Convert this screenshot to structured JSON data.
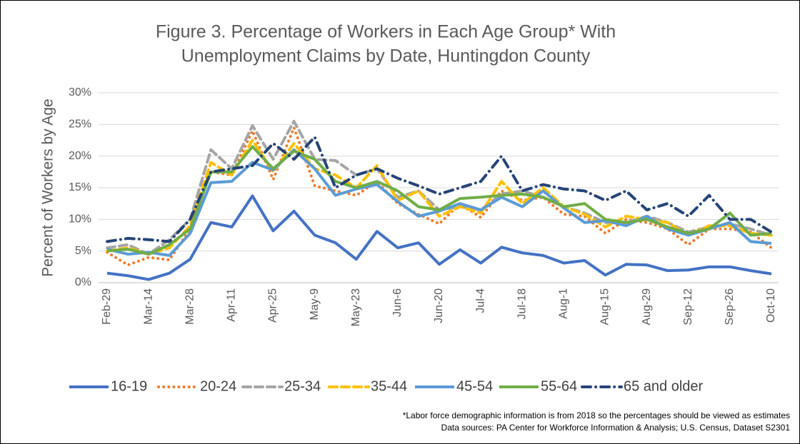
{
  "chart_data": {
    "type": "line",
    "title": [
      "Figure 3. Percentage of Workers in Each Age Group* With",
      "Unemployment Claims by Date, Huntingdon County"
    ],
    "y_label": "Percent of Workers by Age",
    "notes": [
      "*Labor force demographic information is from 2018 so the percentages should be viewed as estimates",
      "Data sources: PA  Center for Workforce Information & Analysis; U.S. Census, Dataset S2301"
    ],
    "categories": [
      "Feb-29",
      null,
      "Mar-14",
      null,
      "Mar-28",
      null,
      "Apr-11",
      null,
      "Apr-25",
      null,
      "May-9",
      null,
      "May-23",
      null,
      "Jun-6",
      null,
      "Jun-20",
      null,
      "Jul-4",
      null,
      "Jul-18",
      null,
      "Aug-1",
      null,
      "Aug-15",
      null,
      "Aug-29",
      null,
      "Sep-12",
      null,
      "Sep-26",
      null,
      "Oct-10"
    ],
    "ylim": [
      0,
      30
    ],
    "yticks": [
      {
        "value": 0,
        "label": "0%"
      },
      {
        "value": 5,
        "label": "5%"
      },
      {
        "value": 10,
        "label": "10%"
      },
      {
        "value": 15,
        "label": "15%"
      },
      {
        "value": 20,
        "label": "20%"
      },
      {
        "value": 25,
        "label": "25%"
      },
      {
        "value": 30,
        "label": "30%"
      }
    ],
    "grid": true,
    "legend": "bottom",
    "series": [
      {
        "name": "16-19",
        "color": "#4472c4",
        "style": "solid",
        "values": [
          1.5,
          1.1,
          0.5,
          1.5,
          3.7,
          9.5,
          8.8,
          13.7,
          8.2,
          11.3,
          7.5,
          6.3,
          3.7,
          8.1,
          5.5,
          6.3,
          2.9,
          5.2,
          3.1,
          5.6,
          4.7,
          4.3,
          3.1,
          3.5,
          1.2,
          2.9,
          2.8,
          1.9,
          2.0,
          2.5,
          2.5,
          1.9,
          1.4
        ]
      },
      {
        "name": "20-24",
        "color": "#ed7d31",
        "style": "dotted",
        "values": [
          4.8,
          2.8,
          4.0,
          3.6,
          8.5,
          17.5,
          17.0,
          24.0,
          16.3,
          24.5,
          15.3,
          14.5,
          13.8,
          16.0,
          12.5,
          10.8,
          9.3,
          12.5,
          10.3,
          14.5,
          13.0,
          13.5,
          10.8,
          10.5,
          7.8,
          10.0,
          9.5,
          8.5,
          6.0,
          8.5,
          8.5,
          8.0,
          5.5
        ]
      },
      {
        "name": "25-34",
        "color": "#a5a5a5",
        "style": "dashed",
        "values": [
          5.5,
          6.0,
          4.5,
          6.8,
          10.0,
          21.0,
          18.0,
          24.8,
          19.5,
          25.5,
          19.5,
          19.3,
          17.0,
          18.0,
          13.5,
          14.5,
          11.5,
          12.0,
          11.5,
          14.0,
          14.5,
          13.5,
          12.0,
          11.0,
          9.5,
          9.5,
          10.5,
          9.5,
          8.0,
          8.8,
          9.3,
          8.5,
          7.5
        ]
      },
      {
        "name": "35-44",
        "color": "#ffc000",
        "style": "dashed",
        "values": [
          5.0,
          5.5,
          4.5,
          5.5,
          9.0,
          19.0,
          17.0,
          22.5,
          17.5,
          22.0,
          18.0,
          17.0,
          15.0,
          18.5,
          13.0,
          14.5,
          10.5,
          12.0,
          11.0,
          16.0,
          12.5,
          15.0,
          12.0,
          10.8,
          8.8,
          10.5,
          10.0,
          9.5,
          7.5,
          9.0,
          9.0,
          7.8,
          7.5
        ]
      },
      {
        "name": "45-54",
        "color": "#5b9bd5",
        "style": "solid",
        "values": [
          5.3,
          4.5,
          4.8,
          4.3,
          7.8,
          15.8,
          16.0,
          19.0,
          17.8,
          21.0,
          18.0,
          13.8,
          14.8,
          15.5,
          12.8,
          10.5,
          11.3,
          12.5,
          11.5,
          13.5,
          12.0,
          14.5,
          11.8,
          9.5,
          9.8,
          9.0,
          10.5,
          8.5,
          7.5,
          8.5,
          9.5,
          6.5,
          6.2
        ]
      },
      {
        "name": "55-64",
        "color": "#70ad47",
        "style": "solid",
        "values": [
          5.0,
          5.3,
          4.5,
          6.0,
          8.5,
          17.5,
          17.5,
          21.5,
          18.0,
          20.8,
          19.5,
          16.0,
          15.0,
          16.0,
          14.5,
          12.0,
          11.5,
          13.3,
          13.5,
          13.8,
          14.0,
          13.5,
          12.0,
          12.5,
          10.0,
          9.5,
          10.0,
          8.8,
          7.8,
          8.5,
          11.0,
          7.5,
          7.8
        ]
      },
      {
        "name": "65 and older",
        "color": "#264478",
        "style": "dashdot",
        "values": [
          6.5,
          7.0,
          6.8,
          6.5,
          10.0,
          17.5,
          18.0,
          18.5,
          22.0,
          19.5,
          23.0,
          15.0,
          17.0,
          18.0,
          16.5,
          15.3,
          14.0,
          15.0,
          16.0,
          20.0,
          14.5,
          15.5,
          14.8,
          14.5,
          13.0,
          14.5,
          11.5,
          12.5,
          10.5,
          13.8,
          10.0,
          10.0,
          8.0
        ]
      }
    ]
  }
}
